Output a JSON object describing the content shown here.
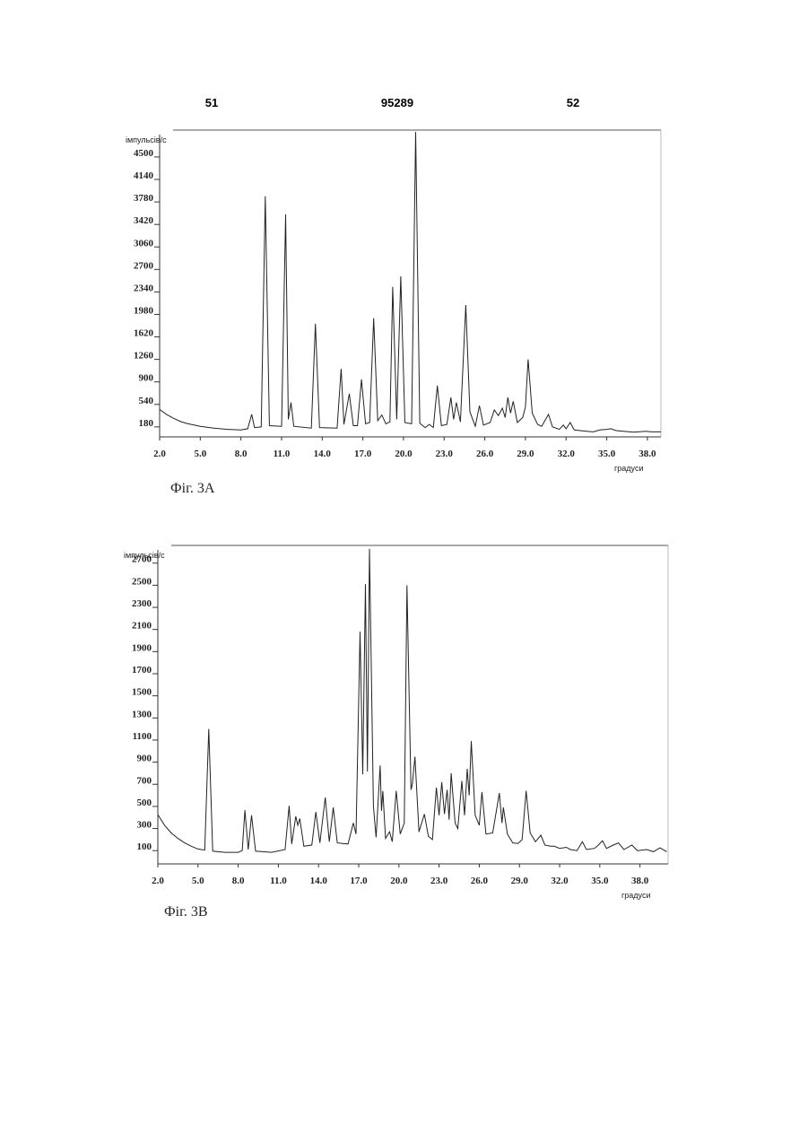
{
  "header": {
    "left": "51",
    "center": "95289",
    "right": "52"
  },
  "chart_data": [
    {
      "type": "line",
      "title": "Фіг. 3А",
      "y_label": "імпульсів/с",
      "x_label": "градуси",
      "color": "#222222",
      "xlim": [
        2,
        39
      ],
      "ylim": [
        20,
        4930
      ],
      "xticks": [
        {
          "value": 2,
          "label": "2.0"
        },
        {
          "value": 5,
          "label": "5.0"
        },
        {
          "value": 8,
          "label": "8.0"
        },
        {
          "value": 11,
          "label": "11.0"
        },
        {
          "value": 14,
          "label": "14.0"
        },
        {
          "value": 17,
          "label": "17.0"
        },
        {
          "value": 20,
          "label": "20.0"
        },
        {
          "value": 23,
          "label": "23.0"
        },
        {
          "value": 26,
          "label": "26.0"
        },
        {
          "value": 29,
          "label": "29.0"
        },
        {
          "value": 32,
          "label": "32.0"
        },
        {
          "value": 35,
          "label": "35.0"
        },
        {
          "value": 38,
          "label": "38.0"
        }
      ],
      "yticks": [
        180,
        540,
        900,
        1260,
        1620,
        1980,
        2340,
        2700,
        3060,
        3420,
        3780,
        4140,
        4500
      ],
      "x": [
        2.0,
        2.5,
        3.0,
        3.5,
        4.0,
        5.0,
        6.0,
        7.0,
        8.0,
        8.5,
        8.8,
        9.0,
        9.5,
        9.8,
        10.1,
        11.0,
        11.3,
        11.5,
        11.7,
        11.9,
        13.2,
        13.5,
        13.8,
        15.1,
        15.4,
        15.6,
        16.0,
        16.3,
        16.6,
        16.9,
        17.2,
        17.5,
        17.8,
        18.1,
        18.4,
        18.7,
        19.0,
        19.2,
        19.5,
        19.8,
        20.1,
        20.6,
        20.9,
        21.2,
        21.6,
        21.9,
        22.2,
        22.5,
        22.8,
        23.2,
        23.5,
        23.7,
        23.9,
        24.2,
        24.6,
        24.9,
        25.3,
        25.6,
        25.9,
        26.4,
        26.7,
        27.0,
        27.3,
        27.5,
        27.7,
        27.9,
        28.1,
        28.4,
        28.8,
        29.0,
        29.2,
        29.5,
        29.9,
        30.2,
        30.7,
        31.0,
        31.5,
        31.8,
        32.0,
        32.3,
        32.6,
        33.5,
        34.0,
        34.5,
        35.0,
        35.3,
        35.7,
        36.5,
        37.0,
        37.9,
        38.3,
        39.0
      ],
      "values": [
        460,
        380,
        320,
        270,
        235,
        190,
        160,
        140,
        130,
        150,
        380,
        170,
        180,
        3870,
        200,
        190,
        3580,
        300,
        570,
        190,
        160,
        1830,
        170,
        160,
        1110,
        220,
        710,
        200,
        200,
        940,
        230,
        250,
        1920,
        280,
        370,
        230,
        260,
        2420,
        300,
        2590,
        250,
        230,
        4900,
        240,
        170,
        220,
        170,
        840,
        200,
        220,
        650,
        300,
        570,
        260,
        2130,
        420,
        190,
        520,
        210,
        250,
        450,
        360,
        480,
        330,
        650,
        400,
        590,
        250,
        330,
        500,
        1260,
        400,
        220,
        190,
        380,
        180,
        140,
        210,
        150,
        250,
        130,
        110,
        100,
        130,
        140,
        150,
        120,
        105,
        95,
        110,
        100,
        100
      ]
    },
    {
      "type": "line",
      "title": "Фіг. 3В",
      "y_label": "імпульсів/с",
      "x_label": "градуси",
      "color": "#222222",
      "xlim": [
        2,
        40.1
      ],
      "ylim": [
        -20,
        2860
      ],
      "xticks": [
        {
          "value": 2,
          "label": "2.0"
        },
        {
          "value": 5,
          "label": "5.0"
        },
        {
          "value": 8,
          "label": "8.0"
        },
        {
          "value": 11,
          "label": "11.0"
        },
        {
          "value": 14,
          "label": "14.0"
        },
        {
          "value": 17,
          "label": "17.0"
        },
        {
          "value": 20,
          "label": "20.0"
        },
        {
          "value": 23,
          "label": "23.0"
        },
        {
          "value": 26,
          "label": "26.0"
        },
        {
          "value": 29,
          "label": "29.0"
        },
        {
          "value": 32,
          "label": "32.0"
        },
        {
          "value": 35,
          "label": "35.0"
        },
        {
          "value": 38,
          "label": "38.0"
        }
      ],
      "yticks": [
        100,
        300,
        500,
        700,
        900,
        1100,
        1300,
        1500,
        1700,
        1900,
        2100,
        2300,
        2500,
        2700
      ],
      "x": [
        2.0,
        2.5,
        3.0,
        3.5,
        4.0,
        4.5,
        5.0,
        5.5,
        5.8,
        6.1,
        7.0,
        8.0,
        8.3,
        8.5,
        8.75,
        9.0,
        9.3,
        10.5,
        11.5,
        11.8,
        12.0,
        12.3,
        12.45,
        12.6,
        12.9,
        13.5,
        13.8,
        14.1,
        14.5,
        14.8,
        15.1,
        15.4,
        16.2,
        16.6,
        16.8,
        17.1,
        17.3,
        17.5,
        17.65,
        17.8,
        18.1,
        18.3,
        18.6,
        18.7,
        18.8,
        19.0,
        19.3,
        19.5,
        19.8,
        20.1,
        20.4,
        20.6,
        20.9,
        21.0,
        21.2,
        21.5,
        21.9,
        22.2,
        22.5,
        22.8,
        23.0,
        23.2,
        23.4,
        23.6,
        23.75,
        23.9,
        24.2,
        24.4,
        24.7,
        24.9,
        25.1,
        25.25,
        25.4,
        25.7,
        26.0,
        26.2,
        26.5,
        27.0,
        27.5,
        27.7,
        27.8,
        28.1,
        28.5,
        28.9,
        29.2,
        29.5,
        29.8,
        30.2,
        30.6,
        30.9,
        31.3,
        31.6,
        32.0,
        32.5,
        32.8,
        33.3,
        33.7,
        34.0,
        34.6,
        34.9,
        35.2,
        35.5,
        36.0,
        36.4,
        36.8,
        37.4,
        37.8,
        38.5,
        39.0,
        39.5,
        40.0
      ],
      "values": [
        425,
        330,
        260,
        210,
        170,
        140,
        115,
        105,
        1200,
        95,
        85,
        85,
        100,
        465,
        110,
        420,
        95,
        85,
        110,
        505,
        160,
        410,
        330,
        390,
        140,
        150,
        450,
        170,
        580,
        180,
        490,
        170,
        160,
        350,
        250,
        2080,
        790,
        2510,
        815,
        2830,
        500,
        220,
        870,
        460,
        640,
        210,
        270,
        180,
        640,
        250,
        350,
        2500,
        650,
        700,
        950,
        270,
        430,
        230,
        200,
        670,
        420,
        720,
        430,
        650,
        380,
        800,
        350,
        300,
        730,
        420,
        840,
        600,
        1090,
        420,
        330,
        630,
        250,
        260,
        620,
        350,
        490,
        250,
        170,
        165,
        200,
        640,
        260,
        180,
        240,
        150,
        140,
        140,
        120,
        130,
        110,
        100,
        180,
        110,
        120,
        150,
        190,
        120,
        150,
        170,
        110,
        150,
        100,
        110,
        90,
        125,
        90
      ]
    }
  ]
}
